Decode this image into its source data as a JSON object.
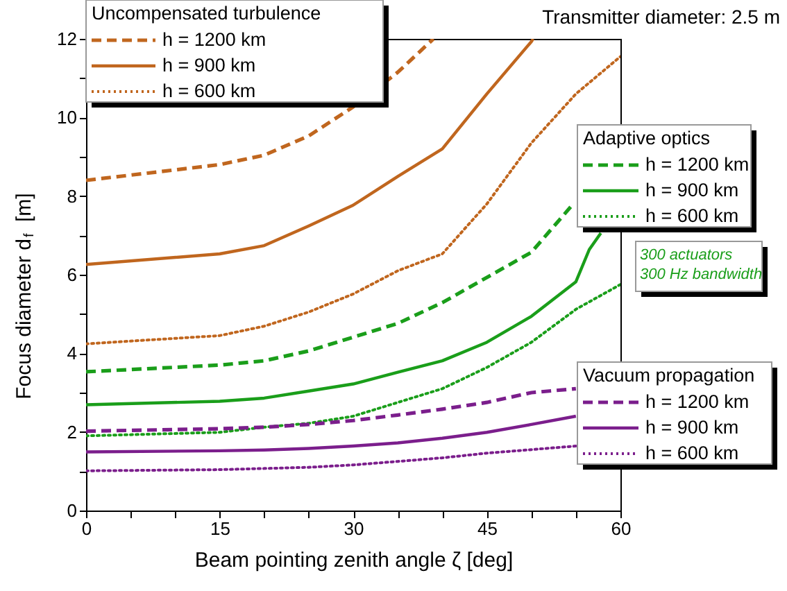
{
  "chart_data": {
    "type": "line",
    "xlabel": "Beam pointing zenith angle ζ [deg]",
    "ylabel": "Focus diameter d$_{f}$ [m]",
    "xlim": [
      0,
      60
    ],
    "ylim": [
      0,
      12
    ],
    "xticks": [
      0,
      {
        "value": 5,
        "label": null
      },
      {
        "value": 10,
        "label": null
      },
      15,
      {
        "value": 20,
        "label": null
      },
      {
        "value": 25,
        "label": null
      },
      30,
      {
        "value": 35,
        "label": null
      },
      {
        "value": 40,
        "label": null
      },
      45,
      {
        "value": 50,
        "label": null
      },
      {
        "value": 55,
        "label": null
      },
      60
    ],
    "yticks": [
      0,
      {
        "value": 1,
        "label": null
      },
      2,
      {
        "value": 3,
        "label": null
      },
      4,
      {
        "value": 5,
        "label": null
      },
      6,
      {
        "value": 7,
        "label": null
      },
      8,
      {
        "value": 9,
        "label": null
      },
      10,
      {
        "value": 11,
        "label": null
      },
      12
    ],
    "grid": false,
    "legend": [
      "top left",
      "right",
      "bottom right"
    ],
    "legend_title": [
      "Uncompensated turbulence",
      "Adaptive optics",
      "Vacuum propagation"
    ],
    "annotations": [
      "Transmitter diameter: 2.5 m",
      "300 actuators\n300 Hz bandwidth"
    ],
    "series": [
      {
        "name": "h = 1200 km",
        "color": "#c0661e",
        "line_style": "dashed",
        "x": [
          0,
          15,
          20,
          25,
          30,
          35,
          39
        ],
        "values": [
          8.4,
          8.8,
          9.04,
          9.53,
          10.27,
          11.15,
          12
        ]
      },
      {
        "name": "h = 900 km",
        "color": "#c0661e",
        "line_style": "solid",
        "x": [
          0,
          15,
          20,
          25,
          30,
          35,
          40,
          45,
          50,
          50.2
        ],
        "values": [
          6.26,
          6.53,
          6.74,
          7.24,
          7.77,
          8.5,
          9.2,
          10.6,
          11.93,
          12
        ]
      },
      {
        "name": "h = 600 km",
        "color": "#c0661e",
        "line_style": "dotted",
        "x": [
          0,
          15,
          20,
          25,
          30,
          35,
          40,
          45,
          50,
          55,
          60
        ],
        "values": [
          4.24,
          4.45,
          4.69,
          5.05,
          5.51,
          6.1,
          6.53,
          7.8,
          9.35,
          10.6,
          11.55
        ]
      },
      {
        "name": "h = 1200 km",
        "color": "#1a9e1a",
        "line_style": "dashed",
        "x": [
          0,
          15,
          20,
          25,
          30,
          35,
          40,
          45,
          50,
          54.7
        ],
        "values": [
          3.53,
          3.7,
          3.81,
          4.06,
          4.41,
          4.76,
          5.29,
          5.93,
          6.57,
          7.8
        ]
      },
      {
        "name": "h = 900 km",
        "color": "#1a9e1a",
        "line_style": "solid",
        "x": [
          0,
          15,
          20,
          25,
          30,
          35,
          40,
          45,
          50,
          55,
          56.5,
          57.8
        ],
        "values": [
          2.69,
          2.78,
          2.86,
          3.04,
          3.22,
          3.52,
          3.81,
          4.28,
          4.94,
          5.82,
          6.64,
          7.06
        ]
      },
      {
        "name": "h = 600 km",
        "color": "#1a9e1a",
        "line_style": "dotted",
        "x": [
          0,
          15,
          20,
          25,
          30,
          35,
          40,
          45,
          50,
          55,
          60
        ],
        "values": [
          1.9,
          1.99,
          2.12,
          2.22,
          2.4,
          2.75,
          3.1,
          3.64,
          4.28,
          5.12,
          5.75
        ]
      },
      {
        "name": "h = 1200 km",
        "color": "#7b1e8c",
        "line_style": "dashed",
        "x": [
          0,
          15,
          20,
          25,
          30,
          35,
          40,
          45,
          50,
          55
        ],
        "values": [
          2.02,
          2.08,
          2.12,
          2.19,
          2.29,
          2.43,
          2.58,
          2.75,
          3.0,
          3.1
        ]
      },
      {
        "name": "h = 900 km",
        "color": "#7b1e8c",
        "line_style": "solid",
        "x": [
          0,
          15,
          20,
          25,
          30,
          35,
          40,
          45,
          50,
          55
        ],
        "values": [
          1.49,
          1.52,
          1.54,
          1.58,
          1.64,
          1.72,
          1.84,
          1.99,
          2.19,
          2.4
        ]
      },
      {
        "name": "h = 600 km",
        "color": "#7b1e8c",
        "line_style": "dotted",
        "x": [
          0,
          15,
          20,
          25,
          30,
          35,
          40,
          45,
          50,
          55
        ],
        "values": [
          1.01,
          1.04,
          1.07,
          1.1,
          1.16,
          1.25,
          1.34,
          1.46,
          1.55,
          1.64
        ]
      }
    ]
  }
}
